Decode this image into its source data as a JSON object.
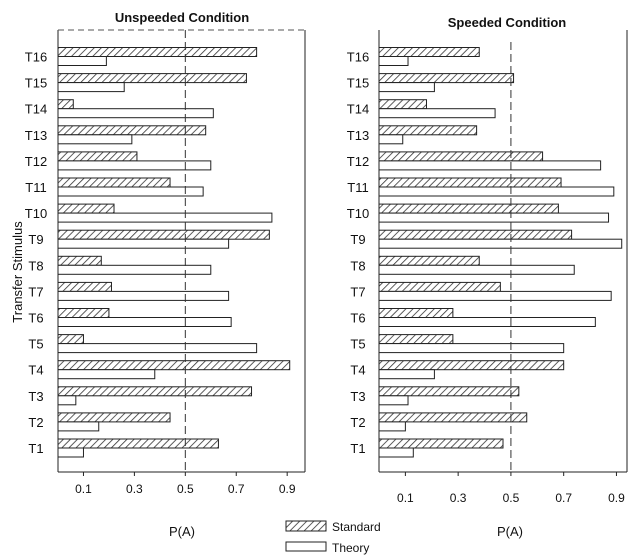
{
  "chart_data": {
    "type": "bar",
    "orientation": "horizontal",
    "ylabel": "Transfer Stimulus",
    "categories": [
      "T1",
      "T2",
      "T3",
      "T4",
      "T5",
      "T6",
      "T7",
      "T8",
      "T9",
      "T10",
      "T11",
      "T12",
      "T13",
      "T14",
      "T15",
      "T16"
    ],
    "legend": {
      "placement": "bottom-center",
      "entries": [
        "Standard",
        "Theory"
      ]
    },
    "panels": [
      {
        "title": "Unspeeded Condition",
        "xlabel": "P(A)",
        "xlim": [
          0,
          0.97
        ],
        "xticks": [
          "0.1",
          "0.3",
          "0.5",
          "0.7",
          "0.9"
        ],
        "reference_line": 0.5,
        "series": [
          {
            "name": "Standard",
            "values": [
              0.63,
              0.44,
              0.76,
              0.91,
              0.1,
              0.2,
              0.21,
              0.17,
              0.83,
              0.22,
              0.44,
              0.31,
              0.58,
              0.06,
              0.74,
              0.78
            ]
          },
          {
            "name": "Theory",
            "values": [
              0.1,
              0.16,
              0.07,
              0.38,
              0.78,
              0.68,
              0.67,
              0.6,
              0.67,
              0.84,
              0.57,
              0.6,
              0.29,
              0.61,
              0.26,
              0.19
            ]
          }
        ]
      },
      {
        "title": "Speeded Condition",
        "xlabel": "P(A)",
        "xlim": [
          0,
          0.94
        ],
        "xticks": [
          "0.1",
          "0.3",
          "0.5",
          "0.7",
          "0.9"
        ],
        "reference_line": 0.5,
        "series": [
          {
            "name": "Standard",
            "values": [
              0.47,
              0.56,
              0.53,
              0.7,
              0.28,
              0.28,
              0.46,
              0.38,
              0.73,
              0.68,
              0.69,
              0.62,
              0.37,
              0.18,
              0.51,
              0.38
            ]
          },
          {
            "name": "Theory",
            "values": [
              0.13,
              0.1,
              0.11,
              0.21,
              0.7,
              0.82,
              0.88,
              0.74,
              0.92,
              0.87,
              0.89,
              0.84,
              0.09,
              0.44,
              0.21,
              0.11
            ]
          }
        ]
      }
    ]
  }
}
